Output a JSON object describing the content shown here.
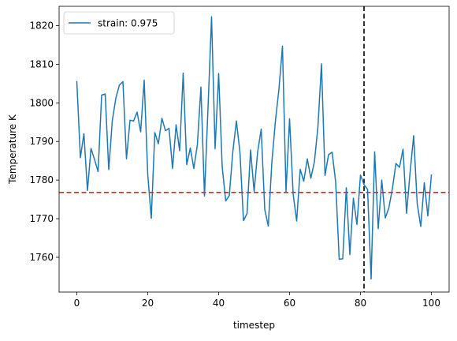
{
  "chart_data": {
    "type": "line",
    "xlabel": "timestep",
    "ylabel": "Temperature K",
    "xlim": [
      -5,
      105
    ],
    "ylim": [
      1751,
      1825
    ],
    "xticks": [
      0,
      20,
      40,
      60,
      80,
      100
    ],
    "yticks": [
      1760,
      1770,
      1780,
      1790,
      1800,
      1810,
      1820
    ],
    "grid": false,
    "legend_position": "top-left",
    "series": [
      {
        "name": "strain: 0.975",
        "color": "#1f77b4",
        "x": [
          0,
          1,
          2,
          3,
          4,
          5,
          6,
          7,
          8,
          9,
          10,
          11,
          12,
          13,
          14,
          15,
          16,
          17,
          18,
          19,
          20,
          21,
          22,
          23,
          24,
          25,
          26,
          27,
          28,
          29,
          30,
          31,
          32,
          33,
          34,
          35,
          36,
          37,
          38,
          39,
          40,
          41,
          42,
          43,
          44,
          45,
          46,
          47,
          48,
          49,
          50,
          51,
          52,
          53,
          54,
          55,
          56,
          57,
          58,
          59,
          60,
          61,
          62,
          63,
          64,
          65,
          66,
          67,
          68,
          69,
          70,
          71,
          72,
          73,
          74,
          75,
          76,
          77,
          78,
          79,
          80,
          81,
          82,
          83,
          84,
          85,
          86,
          87,
          88,
          89,
          90,
          91,
          92,
          93,
          94,
          95,
          96,
          97,
          98,
          99,
          100
        ],
        "y": [
          1805.5,
          1785.8,
          1792,
          1777.3,
          1788.2,
          1785.3,
          1782.2,
          1802,
          1802.3,
          1782.7,
          1795.3,
          1801.2,
          1804.6,
          1805.5,
          1785.5,
          1795.5,
          1795.3,
          1797.6,
          1792.5,
          1805.9,
          1781.5,
          1770.1,
          1792.3,
          1789.4,
          1796,
          1792.8,
          1793.4,
          1783,
          1794.3,
          1787.6,
          1807.7,
          1784,
          1788.3,
          1783,
          1789.2,
          1804.1,
          1775.9,
          1798.7,
          1822.3,
          1788.1,
          1807.6,
          1783.4,
          1774.6,
          1776,
          1787.4,
          1795.3,
          1787.3,
          1769.5,
          1771.3,
          1787.8,
          1777,
          1787.3,
          1793.2,
          1772.4,
          1768.1,
          1784.5,
          1795.2,
          1803.5,
          1814.7,
          1777,
          1795.9,
          1776.5,
          1769.4,
          1782.8,
          1779.7,
          1785.5,
          1780.5,
          1784.7,
          1793.8,
          1810.1,
          1781.2,
          1786.6,
          1787.2,
          1779.5,
          1759.5,
          1759.6,
          1778,
          1760.7,
          1775.3,
          1768.5,
          1781.3,
          1778.8,
          1777.6,
          1754.4,
          1787.3,
          1767.4,
          1780,
          1770.2,
          1772.8,
          1777.8,
          1784.3,
          1783.3,
          1788,
          1771.4,
          1782.1,
          1791.5,
          1773.9,
          1768,
          1779.3,
          1770.7,
          1781.3
        ]
      }
    ],
    "reference_lines": [
      {
        "orientation": "horizontal",
        "value": 1776.8,
        "color": "#d62728",
        "style": "dashed"
      },
      {
        "orientation": "vertical",
        "value": 81,
        "color": "#000000",
        "style": "dashed"
      }
    ]
  }
}
